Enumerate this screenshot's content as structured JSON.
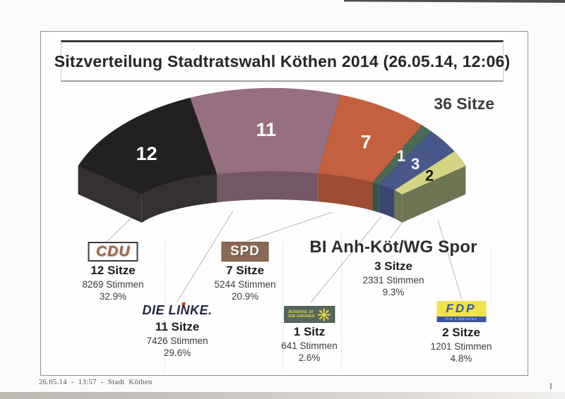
{
  "chart_data": {
    "type": "pie",
    "variant": "3d_fan_seat_arc",
    "title": "Sitzverteilung Stadtratswahl Köthen 2014 (26.05.14, 12:06)",
    "total_label": "36 Sitze",
    "total_seats": 36,
    "legend_position": "bottom",
    "series": [
      {
        "party": "CDU",
        "seats": 12,
        "votes": 8269,
        "percent": 32.9,
        "seats_label": "12 Sitze",
        "votes_label": "8269 Stimmen",
        "percent_label": "32.9%",
        "color": "#232021",
        "color_dark": "#353132",
        "number_color": "#ffffff",
        "logo_style": "cdu",
        "logo_text": "CDU"
      },
      {
        "party": "DIE LINKE",
        "seats": 11,
        "votes": 7426,
        "percent": 29.6,
        "seats_label": "11 Sitze",
        "votes_label": "7426 Stimmen",
        "percent_label": "29.6%",
        "color": "#967080",
        "color_dark": "#745766",
        "number_color": "#ffffff",
        "logo_style": "linke",
        "logo_text": "DIE LINKE."
      },
      {
        "party": "SPD",
        "seats": 7,
        "votes": 5244,
        "percent": 20.9,
        "seats_label": "7 Sitze",
        "votes_label": "5244 Stimmen",
        "percent_label": "20.9%",
        "color": "#c4603d",
        "color_dark": "#9c4c30",
        "number_color": "#ffffff",
        "logo_style": "spd",
        "logo_text": "SPD"
      },
      {
        "party": "BÜNDNIS 90/DIE GRÜNEN",
        "seats": 1,
        "votes": 641,
        "percent": 2.6,
        "seats_label": "1 Sitz",
        "votes_label": "641 Stimmen",
        "percent_label": "2.6%",
        "color": "#4c6a55",
        "color_dark": "#3a5243",
        "number_color": "#ffffff",
        "logo_style": "gruene",
        "logo_text_line1": "BÜNDNIS 90",
        "logo_text_line2": "DIE GRÜNEN"
      },
      {
        "party": "BI Anh-Köt/WG Spor",
        "seats": 3,
        "votes": 2331,
        "percent": 9.3,
        "seats_label": "3 Sitze",
        "votes_label": "2331 Stimmen",
        "percent_label": "9.3%",
        "color": "#49588b",
        "color_dark": "#394670",
        "number_color": "#ffffff",
        "logo_style": "text"
      },
      {
        "party": "FDP",
        "seats": 2,
        "votes": 1201,
        "percent": 4.8,
        "seats_label": "2 Sitze",
        "votes_label": "1201 Stimmen",
        "percent_label": "4.8%",
        "color": "#d5d584",
        "color_dark": "#6e7555",
        "number_color": "#1c1c1c",
        "logo_style": "fdp",
        "logo_text": "FDP",
        "logo_subtext": "Die Liberalen"
      }
    ]
  },
  "page": {
    "footer": "26.05.14  -  13:57  -  Stadt Köthen"
  }
}
